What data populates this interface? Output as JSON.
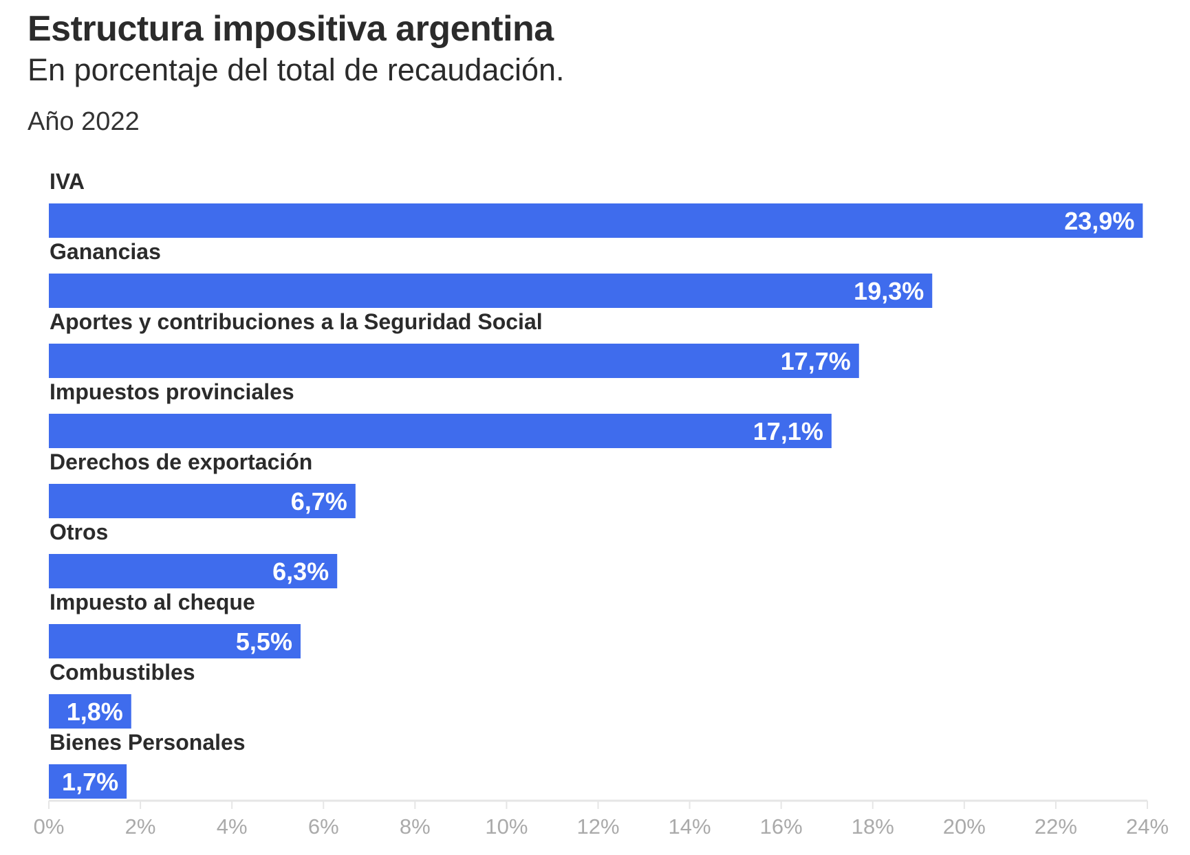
{
  "title": "Estructura impositiva argentina",
  "subtitle": "En porcentaje del total de recaudación.",
  "note": "Año 2022",
  "colors": {
    "bar": "#3f6ced",
    "text": "#2b2b2b",
    "tick": "#aaaaaa",
    "axis": "#e6e6e6"
  },
  "chart_data": {
    "type": "bar",
    "orientation": "horizontal",
    "categories": [
      "IVA",
      "Ganancias",
      "Aportes y contribuciones a la Seguridad Social",
      "Impuestos provinciales",
      "Derechos de exportación",
      "Otros",
      "Impuesto al cheque",
      "Combustibles",
      "Bienes Personales"
    ],
    "values": [
      23.9,
      19.3,
      17.7,
      17.1,
      6.7,
      6.3,
      5.5,
      1.8,
      1.7
    ],
    "value_labels": [
      "23,9%",
      "19,3%",
      "17,7%",
      "17,1%",
      "6,7%",
      "6,3%",
      "5,5%",
      "1,8%",
      "1,7%"
    ],
    "xlim": [
      0,
      24
    ],
    "xticks": [
      0,
      2,
      4,
      6,
      8,
      10,
      12,
      14,
      16,
      18,
      20,
      22,
      24
    ],
    "xtick_labels": [
      "0%",
      "2%",
      "4%",
      "6%",
      "8%",
      "10%",
      "12%",
      "14%",
      "16%",
      "18%",
      "20%",
      "22%",
      "24%"
    ],
    "xlabel": "",
    "ylabel": "",
    "grid": false,
    "legend": "none"
  }
}
